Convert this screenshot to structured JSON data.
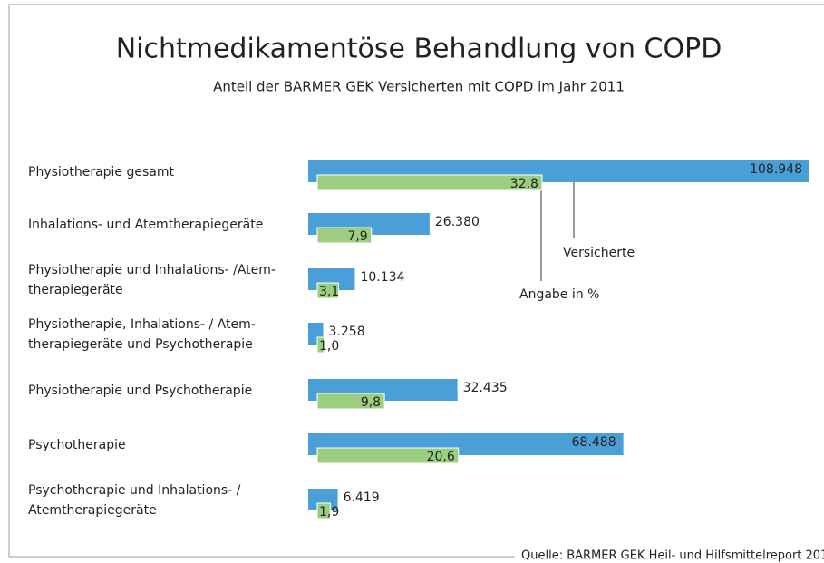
{
  "chart_data": {
    "type": "hbar",
    "title": "Nichtmedikamentöse Behandlung von COPD",
    "subtitle": "Anteil der BARMER GEK Versicherten mit COPD im Jahr 2011",
    "categories": [
      "Physiotherapie gesamt",
      "Inhalations- und Atemtherapiegeräte",
      "Physiotherapie und Inhalations- /Atem-\ntherapiegeräte",
      "Physiotherapie, Inhalations- / Atem-\ntherapiegeräte und Psychotherapie",
      "Physiotherapie und Psychotherapie",
      "Psychotherapie",
      "Psychotherapie und Inhalations- /\nAtemtherapiegeräte"
    ],
    "series": [
      {
        "name": "Versicherte",
        "color": "#4a9fd6",
        "values": [
          108948,
          26380,
          10134,
          3258,
          32435,
          68488,
          6419
        ],
        "value_labels": [
          "108.948",
          "26.380",
          "10.134",
          "3.258",
          "32.435",
          "68.488",
          "6.419"
        ]
      },
      {
        "name": "Angabe in %",
        "color": "#9bcf7f",
        "values": [
          32.8,
          7.9,
          3.1,
          1.0,
          9.8,
          20.6,
          1.9
        ],
        "value_labels": [
          "32,8",
          "7,9",
          "3,1",
          "1,0",
          "9,8",
          "20,6",
          "1,9"
        ]
      }
    ],
    "source": "Quelle: BARMER GEK Heil- und Hilfsmittelreport 201"
  }
}
